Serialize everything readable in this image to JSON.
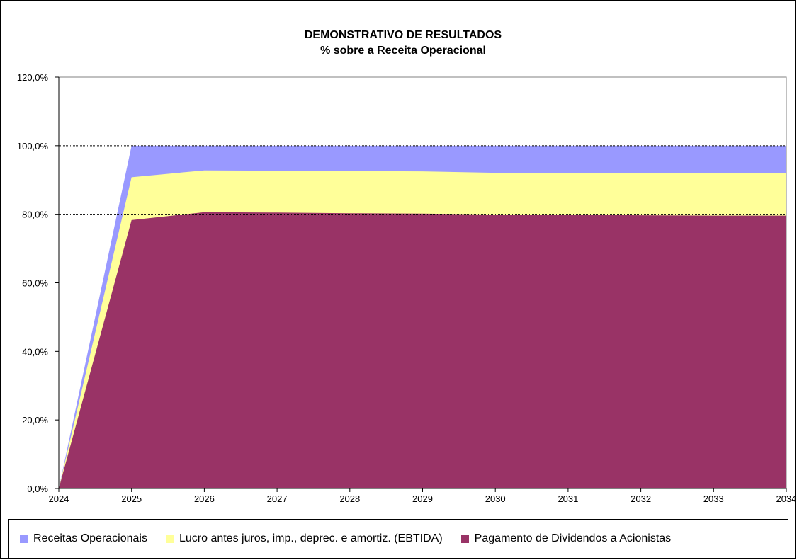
{
  "colors": {
    "receitas": "#9999FF",
    "ebtida": "#FFFF99",
    "dividendos": "#993366",
    "plot_bg": "#FFFFFF"
  },
  "chart_data": {
    "type": "area",
    "title": "DEMONSTRATIVO DE RESULTADOS",
    "subtitle": "% sobre a Receita Operacional",
    "x": [
      "2024",
      "2025",
      "2026",
      "2027",
      "2028",
      "2029",
      "2030",
      "2031",
      "2032",
      "2033",
      "2034"
    ],
    "ylim": [
      0,
      120
    ],
    "y_ticks": [
      "0,0%",
      "20,0%",
      "40,0%",
      "60,0%",
      "80,0%",
      "100,0%",
      "120,0%"
    ],
    "grid": "major horizontal at 80% and 100%",
    "legend_position": "bottom",
    "series": [
      {
        "name": "Receitas Operacionais",
        "color": "#9999FF",
        "values": [
          0,
          100,
          100,
          100,
          100,
          100,
          100,
          100,
          100,
          100,
          100
        ]
      },
      {
        "name": "Lucro antes juros, imp., deprec. e amortiz. (EBTIDA)",
        "color": "#FFFF99",
        "values": [
          0,
          90.8,
          92.8,
          92.7,
          92.6,
          92.5,
          92.1,
          92.1,
          92.1,
          92.1,
          92.1
        ]
      },
      {
        "name": "Pagamento de Dividendos a Acionistas",
        "color": "#993366",
        "values": [
          0,
          78.3,
          80.6,
          80.5,
          80.3,
          80.2,
          79.9,
          79.8,
          79.7,
          79.6,
          79.6
        ]
      }
    ]
  }
}
